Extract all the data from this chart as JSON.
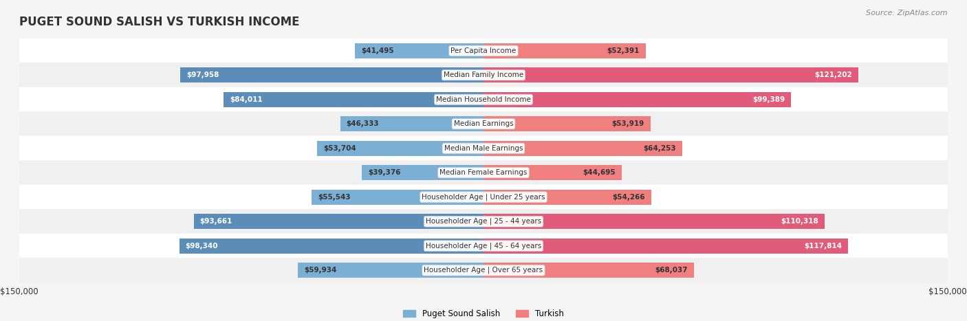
{
  "title": "PUGET SOUND SALISH VS TURKISH INCOME",
  "source": "Source: ZipAtlas.com",
  "categories": [
    "Per Capita Income",
    "Median Family Income",
    "Median Household Income",
    "Median Earnings",
    "Median Male Earnings",
    "Median Female Earnings",
    "Householder Age | Under 25 years",
    "Householder Age | 25 - 44 years",
    "Householder Age | 45 - 64 years",
    "Householder Age | Over 65 years"
  ],
  "left_values": [
    41495,
    97958,
    84011,
    46333,
    53704,
    39376,
    55543,
    93661,
    98340,
    59934
  ],
  "right_values": [
    52391,
    121202,
    99389,
    53919,
    64253,
    44695,
    54266,
    110318,
    117814,
    68037
  ],
  "left_label": "Puget Sound Salish",
  "right_label": "Turkish",
  "left_color": "#7bafd4",
  "right_color": "#f08080",
  "left_color_strong": "#5b8db8",
  "right_color_strong": "#e05c7a",
  "max_val": 150000,
  "left_labels": [
    "$41,495",
    "$97,958",
    "$84,011",
    "$46,333",
    "$53,704",
    "$39,376",
    "$55,543",
    "$93,661",
    "$98,340",
    "$59,934"
  ],
  "right_labels": [
    "$52,391",
    "$121,202",
    "$99,389",
    "$53,919",
    "$64,253",
    "$44,695",
    "$54,266",
    "$110,318",
    "$117,814",
    "$68,037"
  ],
  "bg_color": "#f5f5f5",
  "row_bg_even": "#ffffff",
  "row_bg_odd": "#f0f0f0"
}
